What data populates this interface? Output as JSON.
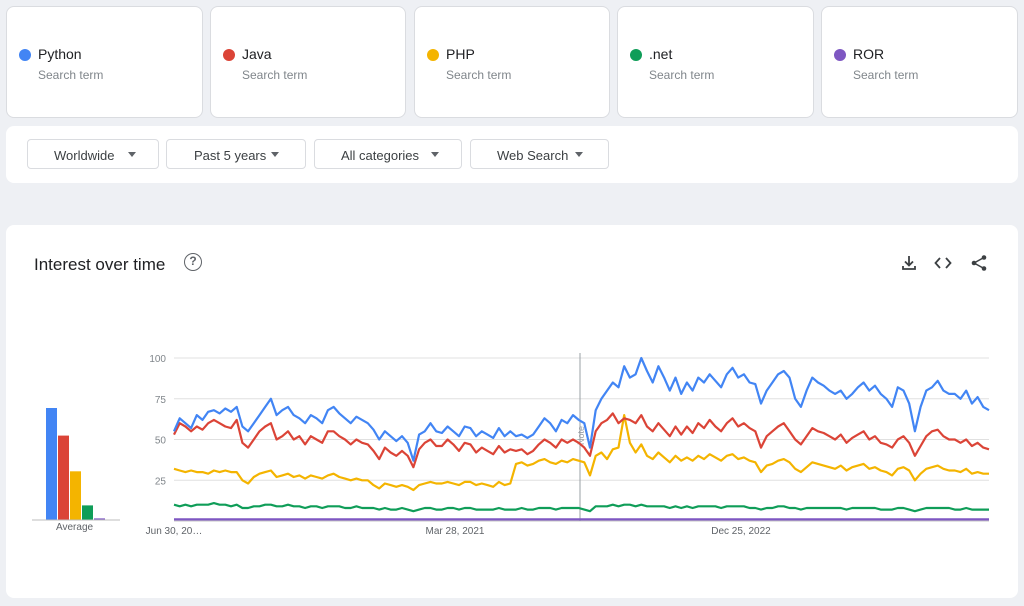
{
  "terms": [
    {
      "name": "Python",
      "sub": "Search term",
      "color": "#4285f4"
    },
    {
      "name": "Java",
      "sub": "Search term",
      "color": "#db4437"
    },
    {
      "name": "PHP",
      "sub": "Search term",
      "color": "#f4b400"
    },
    {
      "name": ".net",
      "sub": "Search term",
      "color": "#0f9d58"
    },
    {
      "name": "ROR",
      "sub": "Search term",
      "color": "#7e57c2"
    }
  ],
  "filters": [
    "Worldwide",
    "Past 5 years",
    "All categories",
    "Web Search"
  ],
  "panel": {
    "title": "Interest over time",
    "icons": [
      "help-icon",
      "download-icon",
      "embed-icon",
      "share-icon"
    ],
    "average_label": "Average",
    "note_marker": "Note"
  },
  "chart_data": {
    "type": "line",
    "title": "Interest over time",
    "xlabel": "",
    "ylabel": "",
    "ylim": [
      0,
      100
    ],
    "yticks": [
      25,
      50,
      75,
      100
    ],
    "x_tick_labels": [
      "Jun 30, 20…",
      "Mar 28, 2021",
      "Dec 25, 2022"
    ],
    "grid": true,
    "averages": [
      {
        "name": "Python",
        "value": 69
      },
      {
        "name": "Java",
        "value": 52
      },
      {
        "name": "PHP",
        "value": 30
      },
      {
        "name": ".net",
        "value": 9
      },
      {
        "name": "ROR",
        "value": 1
      }
    ],
    "series": [
      {
        "name": "Python",
        "color": "#4285f4",
        "values": [
          55,
          63,
          60,
          57,
          65,
          62,
          67,
          68,
          66,
          69,
          67,
          70,
          58,
          55,
          60,
          65,
          70,
          75,
          65,
          68,
          70,
          65,
          63,
          60,
          65,
          63,
          60,
          68,
          70,
          66,
          63,
          60,
          64,
          62,
          60,
          56,
          50,
          55,
          52,
          49,
          52,
          48,
          37,
          53,
          55,
          60,
          55,
          54,
          58,
          55,
          52,
          58,
          57,
          52,
          55,
          53,
          51,
          57,
          52,
          55,
          52,
          53,
          51,
          53,
          58,
          63,
          60,
          55,
          62,
          60,
          65,
          62,
          60,
          45,
          68,
          75,
          80,
          85,
          82,
          95,
          88,
          90,
          100,
          92,
          85,
          95,
          88,
          80,
          88,
          78,
          85,
          80,
          88,
          85,
          90,
          86,
          82,
          90,
          94,
          88,
          90,
          85,
          84,
          72,
          80,
          85,
          90,
          92,
          88,
          75,
          70,
          80,
          88,
          85,
          83,
          80,
          78,
          80,
          75,
          78,
          82,
          85,
          80,
          83,
          78,
          75,
          70,
          82,
          80,
          72,
          55,
          70,
          80,
          82,
          86,
          80,
          78,
          78,
          75,
          80,
          72,
          76,
          70,
          68
        ]
      },
      {
        "name": "Java",
        "color": "#db4437",
        "values": [
          53,
          60,
          58,
          55,
          58,
          56,
          60,
          62,
          60,
          58,
          57,
          62,
          48,
          45,
          50,
          55,
          58,
          60,
          50,
          52,
          55,
          50,
          52,
          47,
          52,
          50,
          48,
          55,
          55,
          52,
          50,
          47,
          50,
          48,
          47,
          43,
          38,
          45,
          42,
          40,
          43,
          40,
          33,
          44,
          48,
          50,
          46,
          46,
          50,
          47,
          43,
          48,
          47,
          42,
          45,
          43,
          41,
          46,
          42,
          44,
          43,
          44,
          41,
          43,
          47,
          50,
          48,
          45,
          50,
          48,
          50,
          48,
          45,
          40,
          55,
          60,
          62,
          66,
          60,
          63,
          62,
          60,
          65,
          58,
          55,
          60,
          56,
          52,
          58,
          53,
          58,
          54,
          60,
          57,
          62,
          58,
          55,
          60,
          63,
          58,
          60,
          57,
          55,
          45,
          52,
          55,
          58,
          60,
          55,
          50,
          47,
          52,
          57,
          55,
          54,
          52,
          50,
          53,
          48,
          51,
          53,
          55,
          50,
          52,
          48,
          47,
          45,
          50,
          52,
          48,
          40,
          46,
          52,
          55,
          56,
          52,
          50,
          50,
          48,
          50,
          46,
          48,
          45,
          44
        ]
      },
      {
        "name": "PHP",
        "color": "#f4b400",
        "values": [
          32,
          31,
          30,
          31,
          30,
          30,
          29,
          31,
          30,
          31,
          30,
          30,
          25,
          23,
          27,
          29,
          30,
          31,
          27,
          28,
          29,
          27,
          28,
          26,
          28,
          27,
          26,
          28,
          29,
          27,
          26,
          25,
          26,
          25,
          25,
          22,
          20,
          23,
          22,
          21,
          22,
          21,
          19,
          22,
          23,
          24,
          23,
          23,
          24,
          23,
          22,
          24,
          24,
          22,
          23,
          22,
          21,
          24,
          22,
          23,
          35,
          36,
          34,
          35,
          37,
          38,
          36,
          35,
          37,
          36,
          38,
          37,
          36,
          28,
          40,
          42,
          38,
          44,
          45,
          65,
          48,
          42,
          47,
          40,
          38,
          42,
          39,
          36,
          40,
          37,
          39,
          37,
          40,
          38,
          41,
          39,
          37,
          40,
          41,
          38,
          39,
          37,
          36,
          30,
          34,
          35,
          37,
          38,
          36,
          32,
          30,
          33,
          36,
          35,
          34,
          33,
          32,
          34,
          31,
          33,
          34,
          35,
          32,
          33,
          31,
          30,
          28,
          32,
          33,
          31,
          25,
          29,
          32,
          33,
          34,
          32,
          31,
          31,
          30,
          32,
          29,
          30,
          29,
          29
        ]
      },
      {
        "name": ".net",
        "color": "#0f9d58",
        "values": [
          10,
          9,
          10,
          9,
          10,
          10,
          10,
          11,
          10,
          10,
          9,
          10,
          8,
          8,
          9,
          9,
          10,
          10,
          9,
          9,
          10,
          9,
          9,
          8,
          9,
          9,
          8,
          9,
          9,
          9,
          8,
          8,
          9,
          8,
          8,
          8,
          7,
          8,
          7,
          7,
          8,
          7,
          6,
          7,
          8,
          8,
          7,
          7,
          8,
          8,
          7,
          8,
          8,
          7,
          7,
          7,
          7,
          8,
          7,
          7,
          7,
          8,
          7,
          7,
          8,
          8,
          8,
          7,
          8,
          8,
          8,
          8,
          7,
          6,
          9,
          9,
          9,
          10,
          9,
          10,
          10,
          9,
          10,
          9,
          9,
          9,
          9,
          8,
          9,
          8,
          9,
          8,
          9,
          9,
          9,
          9,
          8,
          9,
          9,
          9,
          9,
          8,
          8,
          7,
          8,
          8,
          9,
          9,
          8,
          8,
          7,
          8,
          8,
          8,
          8,
          8,
          8,
          8,
          7,
          8,
          8,
          8,
          8,
          8,
          7,
          7,
          7,
          8,
          8,
          7,
          6,
          7,
          8,
          8,
          8,
          8,
          8,
          7,
          7,
          8,
          7,
          7,
          7,
          7
        ]
      },
      {
        "name": "ROR",
        "color": "#7e57c2",
        "values": [
          1,
          1,
          1,
          1,
          1,
          1,
          1,
          1,
          1,
          1,
          1,
          1,
          1,
          1,
          1,
          1,
          1,
          1,
          1,
          1,
          1,
          1,
          1,
          1,
          1,
          1,
          1,
          1,
          1,
          1,
          1,
          1,
          1,
          1,
          1,
          1,
          1,
          1,
          1,
          1,
          1,
          1,
          1,
          1,
          1,
          1,
          1,
          1,
          1,
          1,
          1,
          1,
          1,
          1,
          1,
          1,
          1,
          1,
          1,
          1,
          1,
          1,
          1,
          1,
          1,
          1,
          1,
          1,
          1,
          1,
          1,
          1,
          1,
          1,
          1,
          1,
          1,
          1,
          1,
          1,
          1,
          1,
          1,
          1,
          1,
          1,
          1,
          1,
          1,
          1,
          1,
          1,
          1,
          1,
          1,
          1,
          1,
          1,
          1,
          1,
          1,
          1,
          1,
          1,
          1,
          1,
          1,
          1,
          1,
          1,
          1,
          1,
          1,
          1,
          1,
          1,
          1,
          1,
          1,
          1,
          1,
          1,
          1,
          1,
          1,
          1,
          1,
          1,
          1,
          1,
          1,
          1,
          1,
          1,
          1,
          1,
          1,
          1,
          1,
          1,
          1,
          1,
          1,
          1
        ]
      }
    ]
  }
}
